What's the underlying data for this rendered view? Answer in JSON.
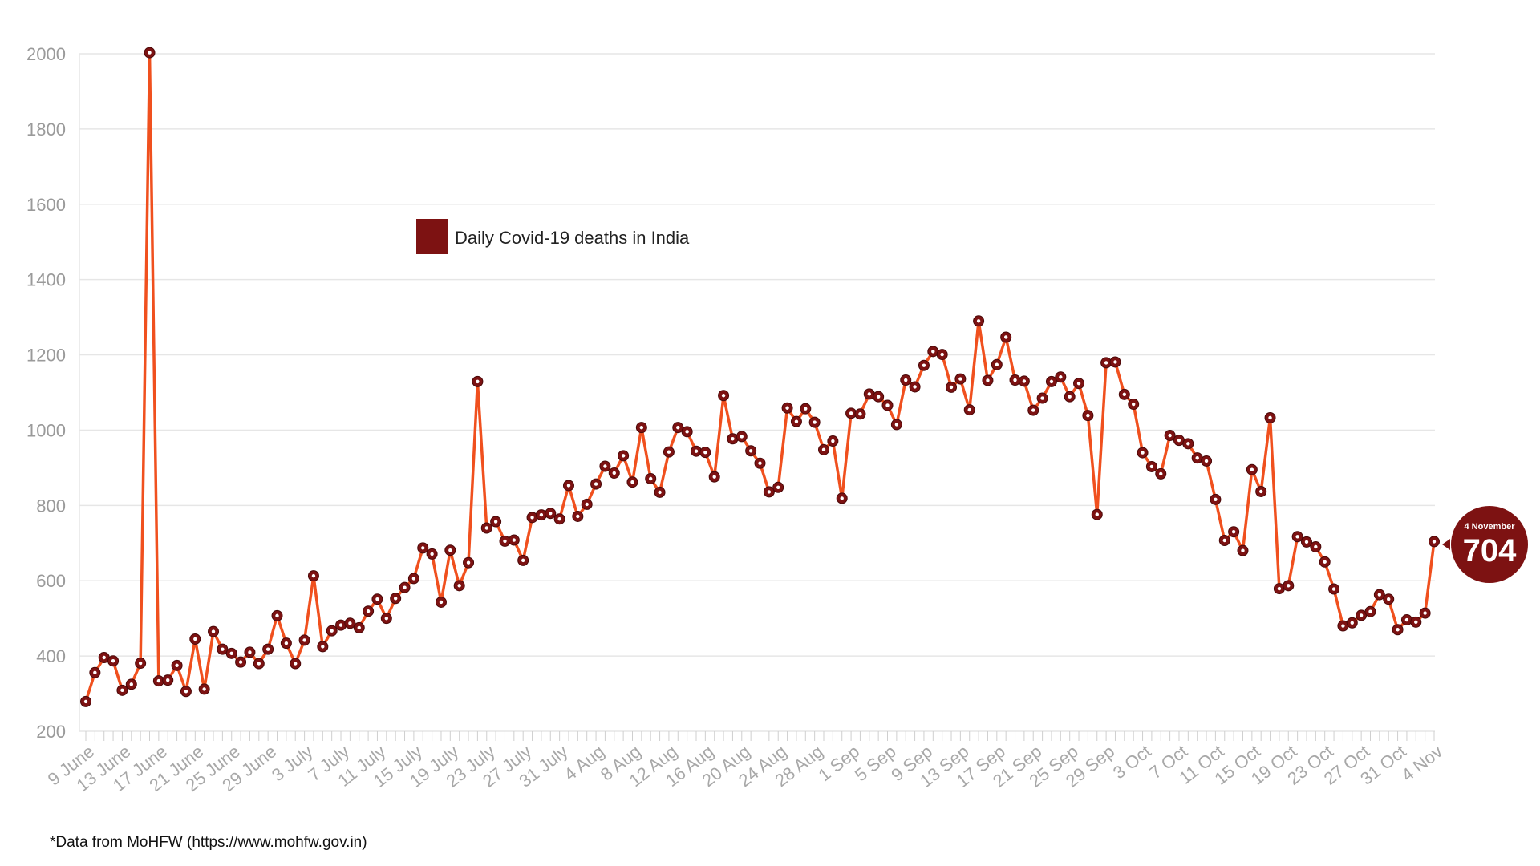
{
  "chart_data": {
    "type": "line",
    "legend": {
      "label": "Daily Covid-19 deaths in India",
      "color": "#7d1212"
    },
    "line_color": "#f0501e",
    "marker_color": "#7d1212",
    "ylim": [
      200,
      2000
    ],
    "yticks": [
      200,
      400,
      600,
      800,
      1000,
      1200,
      1400,
      1600,
      1800,
      2000
    ],
    "grid": true,
    "x_start": "9 June",
    "x_end": "4 Nov",
    "x_ticks": [
      "9 June",
      "13 June",
      "17 June",
      "21 June",
      "25 June",
      "29 June",
      "3 July",
      "7 July",
      "11 July",
      "15 July",
      "19 July",
      "23 July",
      "27 July",
      "31 July",
      "4 Aug",
      "8 Aug",
      "12 Aug",
      "16 Aug",
      "20 Aug",
      "24 Aug",
      "28 Aug",
      "1 Sep",
      "5 Sep",
      "9 Sep",
      "13 Sep",
      "17 Sep",
      "21 Sep",
      "25 Sep",
      "29 Sep",
      "3 Oct",
      "7 Oct",
      "11 Oct",
      "15 Oct",
      "19 Oct",
      "23 Oct",
      "27 Oct",
      "31 Oct",
      "4 Nov"
    ],
    "values": [
      279,
      356,
      396,
      387,
      309,
      325,
      381,
      2003,
      334,
      336,
      375,
      306,
      445,
      312,
      465,
      418,
      407,
      384,
      410,
      380,
      418,
      507,
      434,
      380,
      442,
      613,
      425,
      467,
      482,
      487,
      475,
      519,
      551,
      500,
      553,
      582,
      606,
      687,
      671,
      543,
      681,
      587,
      648,
      1129,
      740,
      757,
      705,
      708,
      654,
      768,
      775,
      779,
      764,
      853,
      771,
      803,
      857,
      904,
      886,
      932,
      862,
      1007,
      871,
      835,
      942,
      1007,
      996,
      944,
      941,
      876,
      1092,
      977,
      983,
      945,
      912,
      836,
      848,
      1059,
      1023,
      1057,
      1021,
      948,
      971,
      819,
      1045,
      1043,
      1096,
      1089,
      1066,
      1015,
      1133,
      1115,
      1172,
      1209,
      1201,
      1114,
      1136,
      1054,
      1290,
      1132,
      1174,
      1247,
      1133,
      1130,
      1053,
      1085,
      1129,
      1141,
      1089,
      1124,
      1039,
      776,
      1179,
      1181,
      1095,
      1069,
      940,
      903,
      884,
      986,
      973,
      964,
      926,
      918,
      816,
      707,
      730,
      680,
      895,
      837,
      1033,
      579,
      587,
      717,
      703,
      690,
      650,
      578,
      480,
      488,
      508,
      518,
      563,
      551,
      470,
      496,
      490,
      514,
      704
    ]
  },
  "callout": {
    "date": "4 November",
    "value": "704"
  },
  "footnote": "*Data from MoHFW (https://www.mohfw.gov.in)"
}
